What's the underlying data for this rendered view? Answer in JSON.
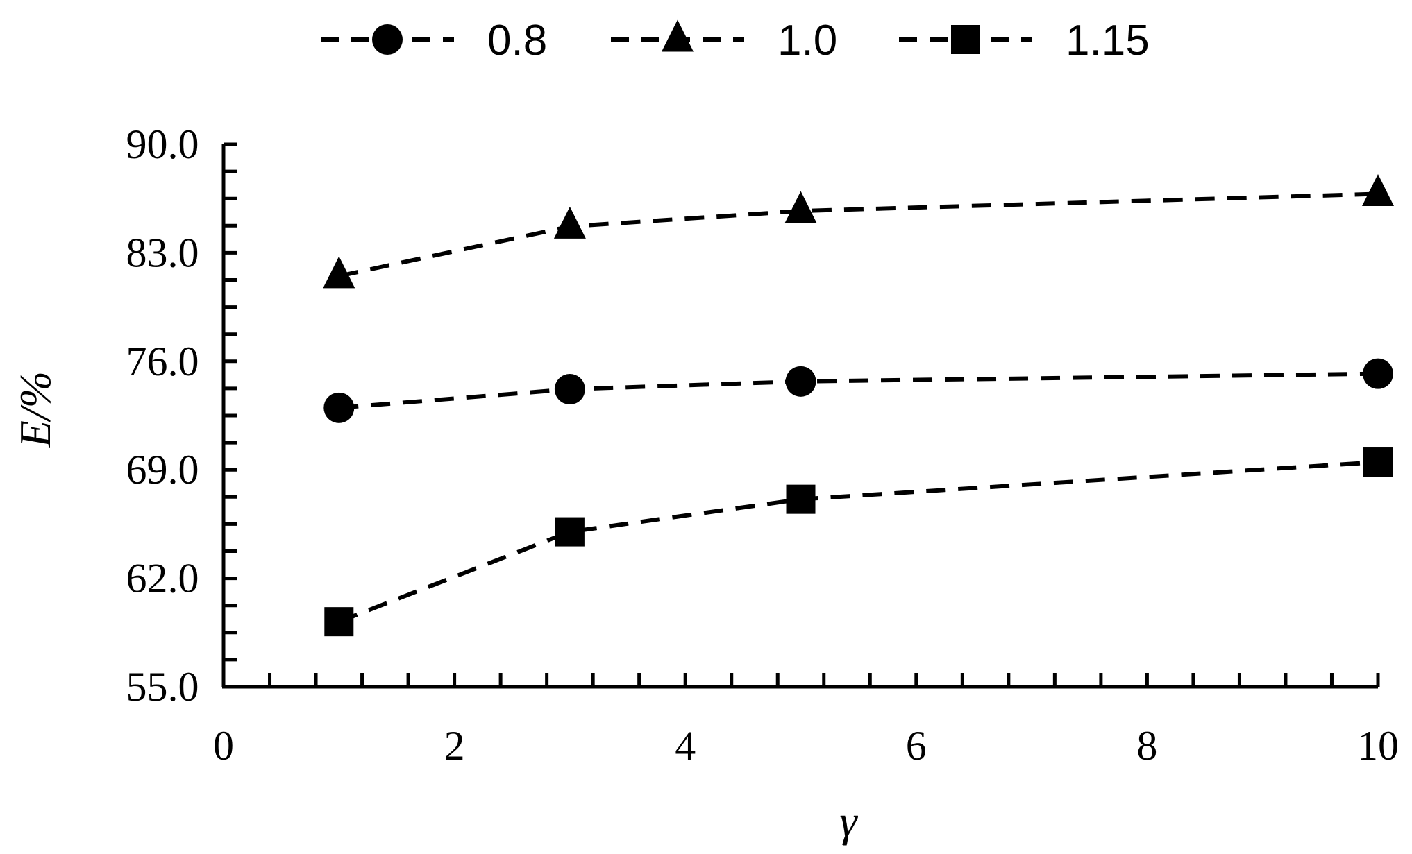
{
  "chart_data": {
    "type": "line",
    "xlabel": "γ",
    "ylabel": "E/%",
    "xlim": [
      0,
      10
    ],
    "ylim": [
      55,
      90
    ],
    "x_ticks": [
      "0",
      "2",
      "4",
      "6",
      "8",
      "10"
    ],
    "y_ticks": [
      "55.0",
      "62.0",
      "69.0",
      "76.0",
      "83.0",
      "90.0"
    ],
    "grid": false,
    "legend": "top",
    "line_style": "dashed",
    "color": "#000000",
    "series": [
      {
        "name": "0.8",
        "marker": "circle",
        "x": [
          1,
          3,
          5,
          10
        ],
        "y": [
          73.0,
          74.2,
          74.7,
          75.2
        ]
      },
      {
        "name": "1.0",
        "marker": "triangle",
        "x": [
          1,
          3,
          5,
          10
        ],
        "y": [
          81.5,
          84.7,
          85.7,
          86.8
        ]
      },
      {
        "name": "1.15",
        "marker": "square",
        "x": [
          1,
          3,
          5,
          10
        ],
        "y": [
          59.2,
          65.0,
          67.1,
          69.5
        ]
      }
    ]
  }
}
